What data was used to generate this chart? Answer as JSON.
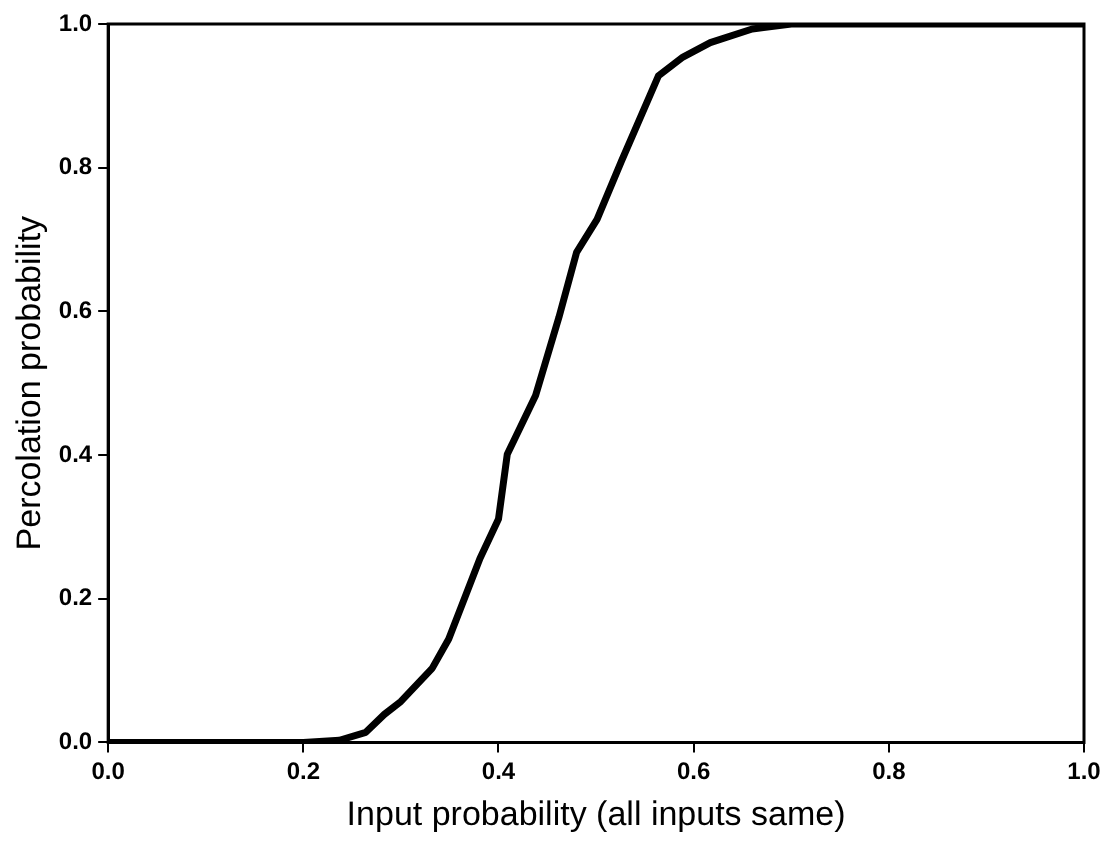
{
  "chart_data": {
    "type": "line",
    "xlabel": "Input probability (all inputs same)",
    "ylabel": "Percolation probability",
    "x": [
      0,
      0.1,
      0.2,
      0.237,
      0.264,
      0.283,
      0.3,
      0.332,
      0.349,
      0.367,
      0.381,
      0.4,
      0.409,
      0.438,
      0.462,
      0.48,
      0.501,
      0.526,
      0.564,
      0.589,
      0.617,
      0.66,
      0.7,
      0.8,
      1.0
    ],
    "series": [
      {
        "color": "#000000",
        "values": [
          0,
          0,
          0,
          0.003,
          0.014,
          0.039,
          0.057,
          0.103,
          0.144,
          0.207,
          0.256,
          0.311,
          0.401,
          0.483,
          0.592,
          0.682,
          0.728,
          0.809,
          0.928,
          0.954,
          0.974,
          0.993,
          1.0,
          1.0,
          1.0
        ]
      }
    ],
    "xlim": [
      0,
      1
    ],
    "ylim": [
      0,
      1
    ],
    "xticks": [
      {
        "value": 0,
        "label": "0.0"
      },
      {
        "value": 0.2,
        "label": "0.2"
      },
      {
        "value": 0.4,
        "label": "0.4"
      },
      {
        "value": 0.6,
        "label": "0.6"
      },
      {
        "value": 0.8,
        "label": "0.8"
      },
      {
        "value": 1,
        "label": "1.0"
      }
    ],
    "yticks": [
      {
        "value": 0,
        "label": "0.0"
      },
      {
        "value": 0.2,
        "label": "0.2"
      },
      {
        "value": 0.4,
        "label": "0.4"
      },
      {
        "value": 0.6,
        "label": "0.6"
      },
      {
        "value": 0.8,
        "label": "0.8"
      },
      {
        "value": 1,
        "label": "1.0"
      }
    ],
    "grid": false,
    "legend": false,
    "marker": "none",
    "line_style": "solid"
  }
}
